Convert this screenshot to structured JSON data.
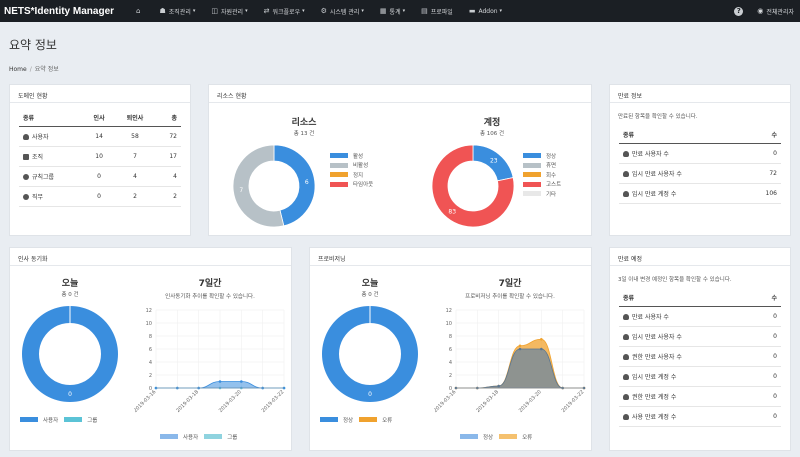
{
  "navbar": {
    "brand": "NETS*Identity Manager",
    "items": [
      {
        "label": "",
        "icon": "home-icon",
        "glyph": "⌂",
        "caret": false
      },
      {
        "label": "조직관리",
        "icon": "users-icon",
        "glyph": "☗",
        "caret": true
      },
      {
        "label": "자원관리",
        "icon": "cube-icon",
        "glyph": "◫",
        "caret": true
      },
      {
        "label": "워크플로우",
        "icon": "workflow-icon",
        "glyph": "⇄",
        "caret": true
      },
      {
        "label": "시스템 관리",
        "icon": "gear-icon",
        "glyph": "⚙",
        "caret": true
      },
      {
        "label": "통계",
        "icon": "stats-icon",
        "glyph": "▦",
        "caret": true
      },
      {
        "label": "프로파일",
        "icon": "profile-icon",
        "glyph": "▤",
        "caret": false
      },
      {
        "label": "Addon",
        "icon": "addon-icon",
        "glyph": "▬",
        "caret": true
      }
    ],
    "help": "?",
    "user": "전체관리자"
  },
  "page": {
    "title": "요약 정보",
    "breadcrumb_home": "Home",
    "breadcrumb_sep": "/",
    "breadcrumb_current": "요약 정보"
  },
  "domain_panel": {
    "title": "도메인 현황",
    "headers": [
      "종류",
      "인사",
      "퇴인사",
      "총"
    ],
    "rows": [
      {
        "label": "사용자",
        "icon": "user-icon",
        "a": "14",
        "b": "58",
        "c": "72"
      },
      {
        "label": "조직",
        "icon": "folder-icon",
        "a": "10",
        "b": "7",
        "c": "17"
      },
      {
        "label": "규칙그룹",
        "icon": "globe-icon",
        "a": "0",
        "b": "4",
        "c": "4"
      },
      {
        "label": "직무",
        "icon": "globe-icon",
        "a": "0",
        "b": "2",
        "c": "2"
      }
    ]
  },
  "resource_panel": {
    "title": "리소스 현황",
    "resource": {
      "title": "리소스",
      "sub": "총 13 건",
      "legend": [
        "활성",
        "비활성",
        "정지",
        "타임아웃"
      ]
    },
    "account": {
      "title": "계정",
      "sub": "총 106 건",
      "legend": [
        "정상",
        "휴면",
        "회수",
        "고스트",
        "기타"
      ]
    }
  },
  "expire_info": {
    "title": "만료 정보",
    "desc": "만료된 항목을 확인할 수 있습니다.",
    "headers": [
      "종류",
      "수"
    ],
    "rows": [
      {
        "label": "만료 사용자 수",
        "value": "0"
      },
      {
        "label": "임시 만료 사용자 수",
        "value": "72"
      },
      {
        "label": "임시 만료 계정 수",
        "value": "106"
      }
    ]
  },
  "hr_sync": {
    "title": "인사 동기화",
    "today_title": "오늘",
    "today_sub": "총 0 건",
    "today_value": "0",
    "week_title": "7일간",
    "week_desc": "인사동기화 추이를 확인할 수 있습니다.",
    "legend_today": [
      "사용자",
      "그룹"
    ],
    "legend_week": [
      "사용자",
      "그룹"
    ]
  },
  "provisioning": {
    "title": "프로비저닝",
    "today_title": "오늘",
    "today_sub": "총 0 건",
    "today_value": "0",
    "week_title": "7일간",
    "week_desc": "프로비저닝 추이를 확인할 수 있습니다.",
    "legend_today": [
      "정상",
      "오류"
    ],
    "legend_week": [
      "정상",
      "오류"
    ]
  },
  "expire_plan": {
    "title": "만료 예정",
    "desc": "3일 이내 변경 예정인 항목을 확인할 수 있습니다.",
    "headers": [
      "종류",
      "수"
    ],
    "rows": [
      {
        "label": "만료 사용자 수",
        "value": "0"
      },
      {
        "label": "임시 만료 사용자 수",
        "value": "0"
      },
      {
        "label": "권한 만료 사용자 수",
        "value": "0"
      },
      {
        "label": "임시 만료 계정 수",
        "value": "0"
      },
      {
        "label": "권한 만료 계정 수",
        "value": "0"
      },
      {
        "label": "사용 만료 계정 수",
        "value": "0"
      }
    ]
  },
  "colors": {
    "blue": "#3a8ede",
    "gray": "#b7c1c7",
    "orange": "#f0a22e",
    "red": "#f05454",
    "cyan": "#5bc3d6",
    "light": "#e8e8e8"
  },
  "chart_data": [
    {
      "type": "pie",
      "title": "리소스",
      "categories": [
        "활성",
        "비활성",
        "정지",
        "타임아웃"
      ],
      "values": [
        6,
        7,
        0,
        0
      ],
      "legend": "right"
    },
    {
      "type": "pie",
      "title": "계정",
      "categories": [
        "정상",
        "휴면",
        "회수",
        "고스트",
        "기타"
      ],
      "values": [
        23,
        0,
        0,
        83,
        0
      ],
      "legend": "right"
    },
    {
      "type": "pie",
      "title": "오늘",
      "categories": [
        "사용자",
        "그룹"
      ],
      "values": [
        0,
        0
      ],
      "legend": "bottom"
    },
    {
      "type": "area",
      "title": "7일간",
      "x": [
        "2019-03-16",
        "2019-03-17",
        "2019-03-18",
        "2019-03-19",
        "2019-03-20",
        "2019-03-21",
        "2019-03-22"
      ],
      "xticks": [
        "2019-03-16",
        "2019-03-18",
        "2019-03-20",
        "2019-03-22"
      ],
      "series": [
        {
          "name": "사용자",
          "values": [
            0,
            0,
            0,
            1,
            1,
            0,
            0
          ]
        },
        {
          "name": "그룹",
          "values": [
            0,
            0,
            0,
            0,
            0,
            0,
            0
          ]
        }
      ],
      "ylim": [
        0,
        12
      ],
      "yticks": [
        0,
        2,
        4,
        6,
        8,
        10,
        12
      ],
      "legend": "bottom"
    },
    {
      "type": "pie",
      "title": "오늘",
      "categories": [
        "정상",
        "오류"
      ],
      "values": [
        0,
        0
      ],
      "legend": "bottom"
    },
    {
      "type": "area",
      "title": "7일간",
      "x": [
        "2019-03-16",
        "2019-03-17",
        "2019-03-18",
        "2019-03-19",
        "2019-03-20",
        "2019-03-21",
        "2019-03-22"
      ],
      "xticks": [
        "2019-03-16",
        "2019-03-18",
        "2019-03-20",
        "2019-03-22"
      ],
      "series": [
        {
          "name": "정상",
          "values": [
            0,
            0,
            0.3,
            6,
            6,
            0,
            0
          ]
        },
        {
          "name": "오류",
          "values": [
            0,
            0,
            0.3,
            6.5,
            7.5,
            0,
            0
          ]
        }
      ],
      "ylim": [
        0,
        12
      ],
      "yticks": [
        0,
        2,
        4,
        6,
        8,
        10,
        12
      ],
      "legend": "bottom"
    }
  ]
}
